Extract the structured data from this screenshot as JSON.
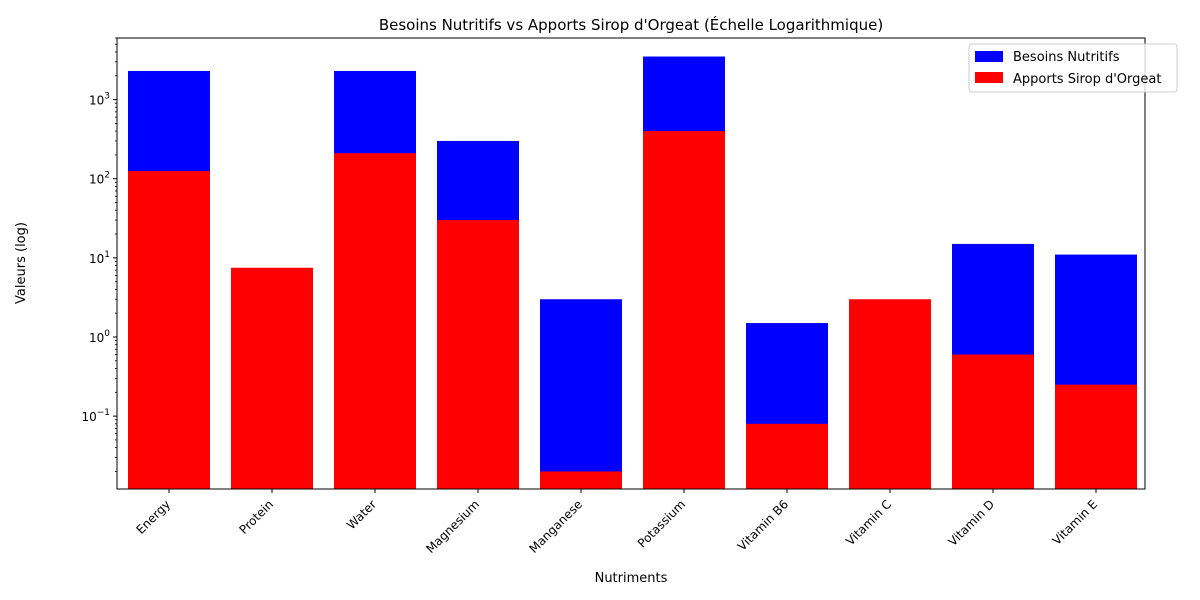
{
  "chart_data": {
    "type": "bar",
    "title": "Besoins Nutritifs vs Apports Sirop d'Orgeat (Échelle Logarithmique)",
    "xlabel": "Nutriments",
    "ylabel": "Valeurs (log)",
    "yscale": "log",
    "ylim": [
      0.012,
      6000
    ],
    "yticks": [
      0.1,
      1,
      10,
      100,
      1000
    ],
    "ytick_labels": [
      {
        "base": "10",
        "exp": "−1"
      },
      {
        "base": "10",
        "exp": "0"
      },
      {
        "base": "10",
        "exp": "1"
      },
      {
        "base": "10",
        "exp": "2"
      },
      {
        "base": "10",
        "exp": "3"
      }
    ],
    "grid": false,
    "legend_position": "top-right",
    "categories": [
      "Energy",
      "Protein",
      "Water",
      "Magnesium",
      "Manganese",
      "Potassium",
      "Vitamin B6",
      "Vitamin C",
      "Vitamin D",
      "Vitamin E"
    ],
    "series": [
      {
        "name": "Besoins Nutritifs",
        "color": "#0000ff",
        "values": [
          2300,
          0,
          2300,
          300,
          3,
          3500,
          1.5,
          0,
          15,
          11
        ]
      },
      {
        "name": "Apports Sirop d'Orgeat",
        "color": "#ff0000",
        "values": [
          125,
          7.5,
          210,
          30,
          0.02,
          400,
          0.08,
          3,
          0.6,
          0.25
        ]
      }
    ]
  }
}
